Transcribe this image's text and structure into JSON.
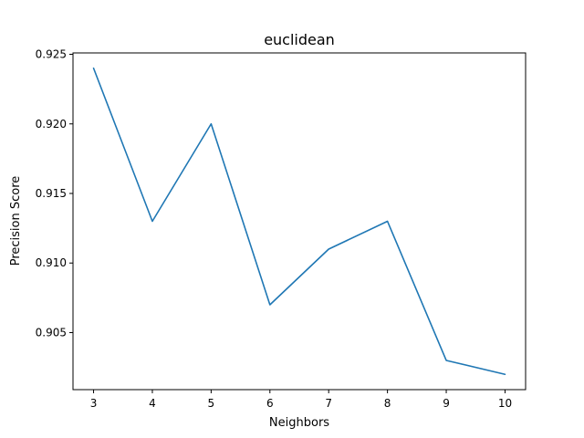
{
  "chart_data": {
    "type": "line",
    "title": "euclidean",
    "xlabel": "Neighbors",
    "ylabel": "Precision Score",
    "x": [
      3,
      4,
      5,
      6,
      7,
      8,
      9,
      10
    ],
    "series": [
      {
        "values": [
          0.924,
          0.913,
          0.92,
          0.907,
          0.911,
          0.913,
          0.903,
          0.902
        ],
        "color": "#1f77b4"
      }
    ],
    "xticks": [
      "3",
      "4",
      "5",
      "6",
      "7",
      "8",
      "9",
      "10"
    ],
    "yticks": [
      "0.905",
      "0.910",
      "0.915",
      "0.920",
      "0.925"
    ],
    "ylim": [
      0.9009,
      0.9251
    ],
    "xlim": [
      2.65,
      10.35
    ],
    "grid": false,
    "legend": "none"
  }
}
